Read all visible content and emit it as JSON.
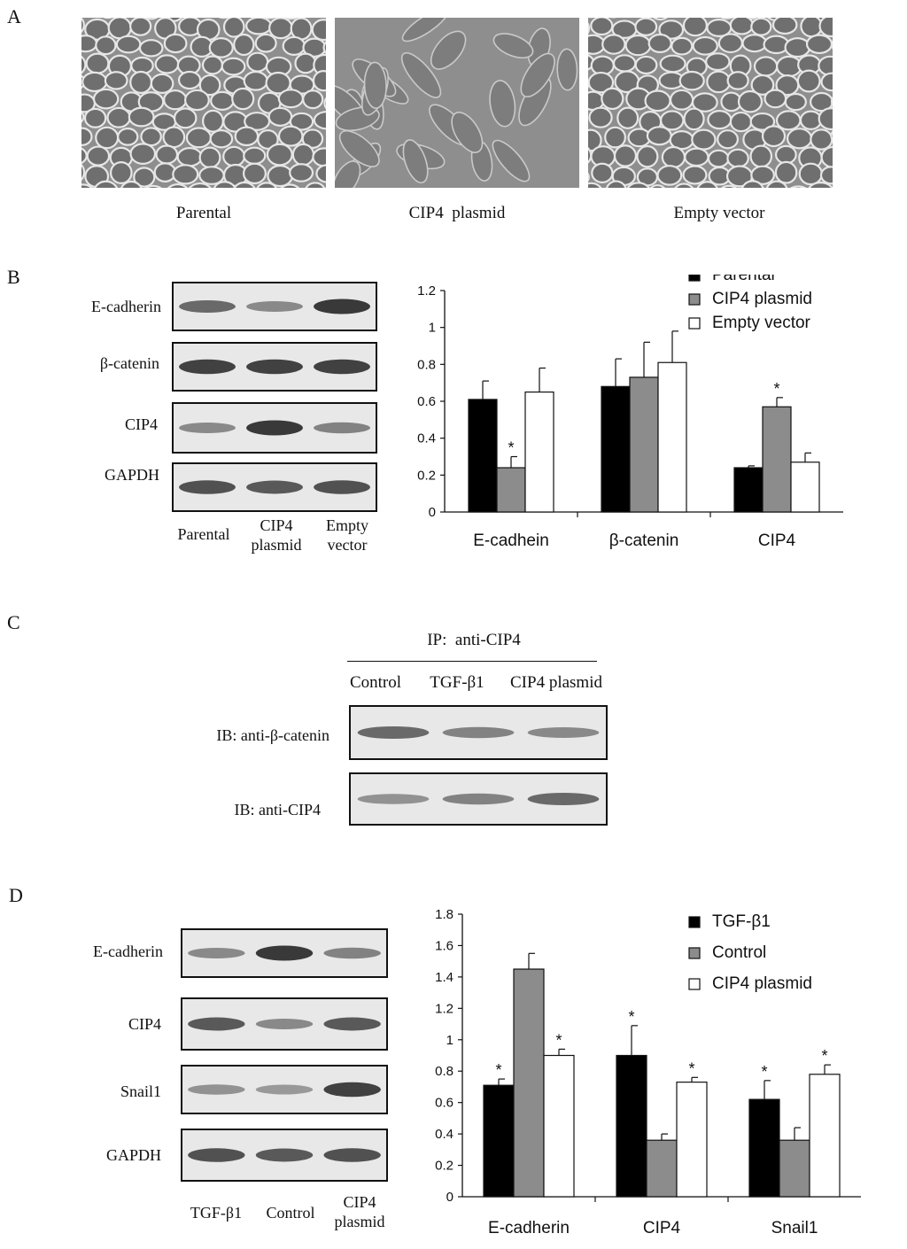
{
  "panel_a": {
    "letter": "A",
    "images": [
      {
        "caption": "Parental",
        "texture": "cobblestone"
      },
      {
        "caption": "CIP4  plasmid",
        "texture": "spindle"
      },
      {
        "caption": "Empty vector",
        "texture": "cobblestone"
      }
    ]
  },
  "panel_b": {
    "letter": "B",
    "blot_rows": [
      {
        "label": "E-cadherin",
        "bands": [
          0.6,
          0.4,
          0.9
        ]
      },
      {
        "label": "β-catenin",
        "bands": [
          0.85,
          0.85,
          0.85
        ]
      },
      {
        "label": "CIP4",
        "bands": [
          0.4,
          0.9,
          0.45
        ]
      },
      {
        "label": "GAPDH",
        "bands": [
          0.75,
          0.7,
          0.75
        ]
      }
    ],
    "lanes": [
      "Parental",
      "CIP4\nplasmid",
      "Empty\nvector"
    ]
  },
  "panel_c": {
    "letter": "C",
    "ip_label": "IP:  anti-CIP4",
    "lanes": [
      "Control",
      "TGF-β1",
      "CIP4 plasmid"
    ],
    "blot_rows": [
      {
        "label": "IB: anti-β-catenin",
        "bands": [
          0.6,
          0.45,
          0.4
        ]
      },
      {
        "label": "IB: anti-CIP4",
        "bands": [
          0.35,
          0.45,
          0.6
        ]
      }
    ]
  },
  "panel_d": {
    "letter": "D",
    "blot_rows": [
      {
        "label": "E-cadherin",
        "bands": [
          0.4,
          0.9,
          0.45
        ]
      },
      {
        "label": "CIP4",
        "bands": [
          0.7,
          0.4,
          0.7
        ]
      },
      {
        "label": "Snail1",
        "bands": [
          0.35,
          0.3,
          0.85
        ]
      },
      {
        "label": "GAPDH",
        "bands": [
          0.75,
          0.7,
          0.75
        ]
      }
    ],
    "lanes": [
      "TGF-β1",
      "Control",
      "CIP4\nplasmid"
    ]
  },
  "colors": {
    "black": "#000000",
    "gray": "#8c8c8c",
    "white": "#ffffff"
  },
  "chart_data": [
    {
      "type": "bar",
      "title": "",
      "xlabel": "",
      "ylabel": "",
      "categories": [
        "E-cadhein",
        "β-catenin",
        "CIP4"
      ],
      "ylim": [
        0,
        1.2
      ],
      "yticks": [
        "0",
        "0.2",
        "0.4",
        "0.6",
        "0.8",
        "1",
        "1.2"
      ],
      "legend_position": "top-right",
      "series": [
        {
          "name": "Parental",
          "color": "#000000",
          "values": [
            0.61,
            0.68,
            0.24
          ],
          "errors": [
            0.1,
            0.15,
            0.01
          ],
          "stars": [
            false,
            false,
            false
          ]
        },
        {
          "name": "CIP4 plasmid",
          "color": "#8c8c8c",
          "values": [
            0.24,
            0.73,
            0.57
          ],
          "errors": [
            0.06,
            0.19,
            0.05
          ],
          "stars": [
            true,
            false,
            true
          ]
        },
        {
          "name": "Empty vector",
          "color": "#ffffff",
          "values": [
            0.65,
            0.81,
            0.27
          ],
          "errors": [
            0.13,
            0.17,
            0.05
          ],
          "stars": [
            false,
            false,
            false
          ]
        }
      ],
      "star_label": "*"
    },
    {
      "type": "bar",
      "title": "",
      "xlabel": "",
      "ylabel": "",
      "categories": [
        "E-cadherin",
        "CIP4",
        "Snail1"
      ],
      "ylim": [
        0,
        1.8
      ],
      "yticks": [
        "0",
        "0.2",
        "0.4",
        "0.6",
        "0.8",
        "1",
        "1.2",
        "1.4",
        "1.6",
        "1.8"
      ],
      "legend_position": "top-right",
      "series": [
        {
          "name": "TGF-β1",
          "color": "#000000",
          "values": [
            0.71,
            0.9,
            0.62
          ],
          "errors": [
            0.04,
            0.19,
            0.12
          ],
          "stars": [
            true,
            true,
            true
          ]
        },
        {
          "name": "Control",
          "color": "#8c8c8c",
          "values": [
            1.45,
            0.36,
            0.36
          ],
          "errors": [
            0.1,
            0.04,
            0.08
          ],
          "stars": [
            false,
            false,
            false
          ]
        },
        {
          "name": "CIP4 plasmid",
          "color": "#ffffff",
          "values": [
            0.9,
            0.73,
            0.78
          ],
          "errors": [
            0.04,
            0.03,
            0.06
          ],
          "stars": [
            true,
            true,
            true
          ]
        }
      ],
      "star_label": "*"
    }
  ]
}
